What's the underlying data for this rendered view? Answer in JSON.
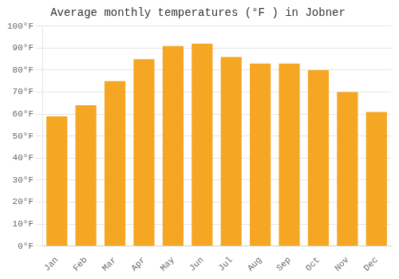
{
  "chart_data": {
    "type": "bar",
    "title": "Average monthly temperatures (°F ) in Jobner",
    "categories": [
      "Jan",
      "Feb",
      "Mar",
      "Apr",
      "May",
      "Jun",
      "Jul",
      "Aug",
      "Sep",
      "Oct",
      "Nov",
      "Dec"
    ],
    "values": [
      59,
      64,
      75,
      85,
      91,
      92,
      86,
      83,
      83,
      80,
      70,
      61
    ],
    "color": "#F5A623",
    "ylim": [
      0,
      100
    ],
    "yticks": [
      {
        "value": 0,
        "label": "0°F"
      },
      {
        "value": 10,
        "label": "10°F"
      },
      {
        "value": 20,
        "label": "20°F"
      },
      {
        "value": 30,
        "label": "30°F"
      },
      {
        "value": 40,
        "label": "40°F"
      },
      {
        "value": 50,
        "label": "50°F"
      },
      {
        "value": 60,
        "label": "60°F"
      },
      {
        "value": 70,
        "label": "70°F"
      },
      {
        "value": 80,
        "label": "80°F"
      },
      {
        "value": 90,
        "label": "90°F"
      },
      {
        "value": 100,
        "label": "100°F"
      }
    ],
    "grid": true
  }
}
